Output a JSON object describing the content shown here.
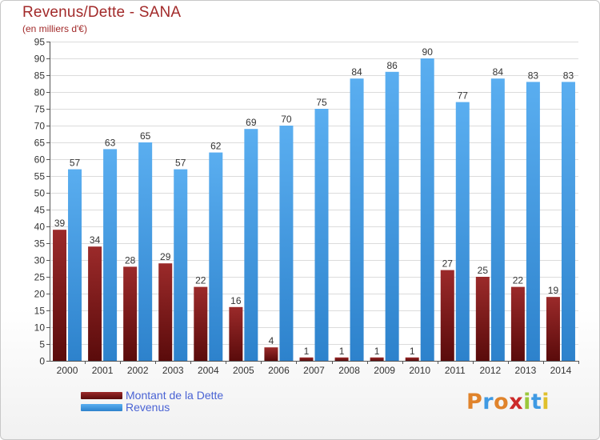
{
  "chart_data": {
    "type": "bar",
    "title": "Revenus/Dette - SANA",
    "subtitle": "(en milliers d'€)",
    "categories": [
      "2000",
      "2001",
      "2002",
      "2003",
      "2004",
      "2005",
      "2006",
      "2007",
      "2008",
      "2009",
      "2010",
      "2011",
      "2012",
      "2013",
      "2014"
    ],
    "series": [
      {
        "name": "Montant de la Dette",
        "values": [
          39,
          34,
          28,
          29,
          22,
          16,
          4,
          1,
          1,
          1,
          1,
          27,
          25,
          22,
          19
        ],
        "color": "#7a1414"
      },
      {
        "name": "Revenus",
        "values": [
          57,
          63,
          65,
          57,
          62,
          69,
          70,
          75,
          84,
          86,
          90,
          77,
          84,
          83,
          83
        ],
        "color": "#3f9ae3"
      }
    ],
    "ylim": [
      0,
      95
    ],
    "ytick_step": 5,
    "grid": true,
    "legend_position": "bottom-left"
  },
  "brand": {
    "logo_text": "Proxiti"
  }
}
